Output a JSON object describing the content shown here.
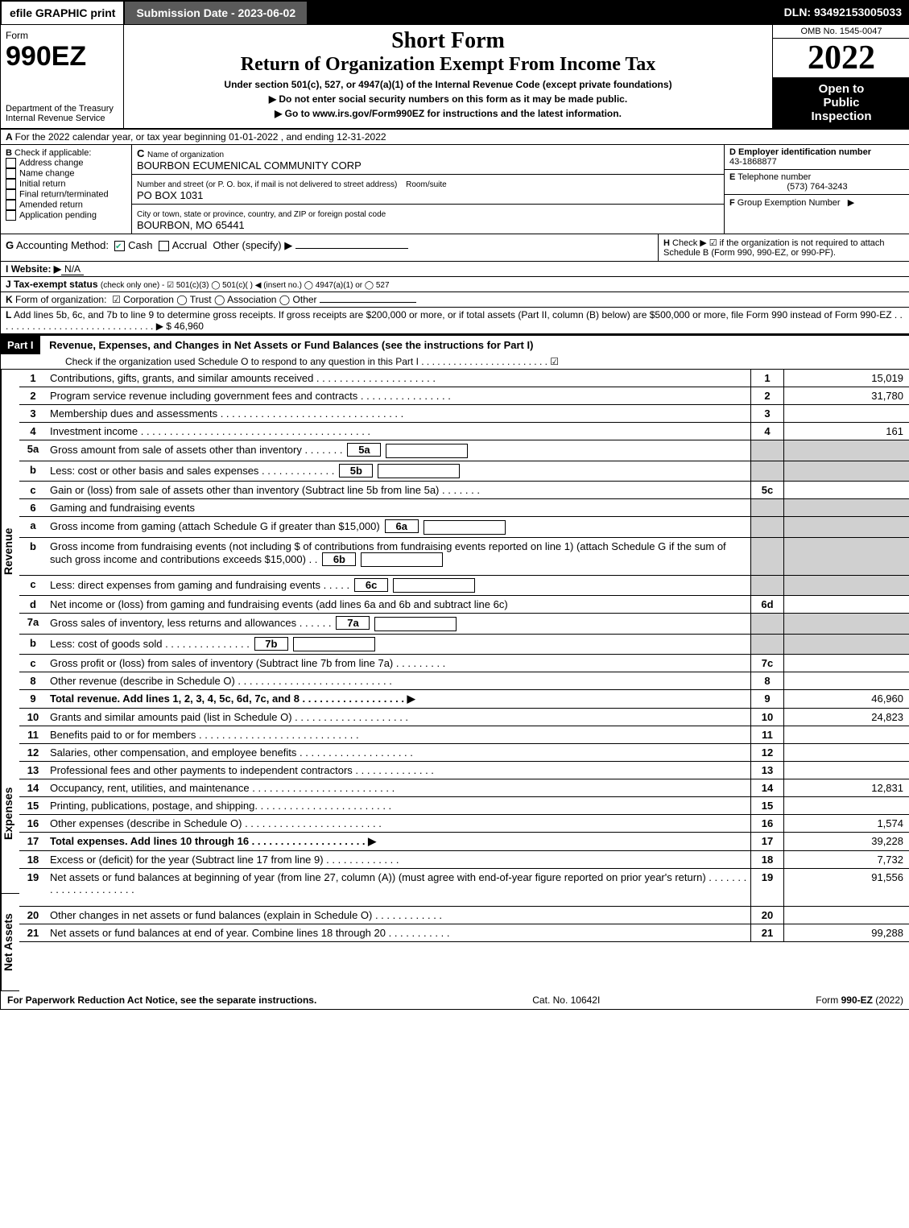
{
  "topbar": {
    "efile": "efile GRAPHIC print",
    "sub_label": "Submission Date - ",
    "sub_date": "2023-06-02",
    "dln_label": "DLN: ",
    "dln": "93492153005033"
  },
  "header": {
    "form_word": "Form",
    "form_no": "990EZ",
    "dept": "Department of the Treasury\nInternal Revenue Service",
    "title1": "Short Form",
    "title2": "Return of Organization Exempt From Income Tax",
    "subtitle": "Under section 501(c), 527, or 4947(a)(1) of the Internal Revenue Code (except private foundations)",
    "instr1": "▶ Do not enter social security numbers on this form as it may be made public.",
    "instr2": "▶ Go to www.irs.gov/Form990EZ for instructions and the latest information.",
    "omb": "OMB No. 1545-0047",
    "year": "2022",
    "open1": "Open to",
    "open2": "Public",
    "open3": "Inspection"
  },
  "A": {
    "text": "For the 2022 calendar year, or tax year beginning 01-01-2022 , and ending 12-31-2022"
  },
  "B": {
    "label": "Check if applicable:",
    "items": [
      "Address change",
      "Name change",
      "Initial return",
      "Final return/terminated",
      "Amended return",
      "Application pending"
    ]
  },
  "C": {
    "name_label": "Name of organization",
    "name": "BOURBON ECUMENICAL COMMUNITY CORP",
    "street_label": "Number and street (or P. O. box, if mail is not delivered to street address)",
    "room_label": "Room/suite",
    "street": "PO BOX 1031",
    "city_label": "City or town, state or province, country, and ZIP or foreign postal code",
    "city": "BOURBON, MO  65441"
  },
  "D": {
    "label": "Employer identification number",
    "value": "43-1868877"
  },
  "E": {
    "label": "Telephone number",
    "value": "(573) 764-3243"
  },
  "F": {
    "label": "Group Exemption Number",
    "arrow": "▶"
  },
  "G": {
    "label": "Accounting Method:",
    "cash": "Cash",
    "accrual": "Accrual",
    "other": "Other (specify) ▶"
  },
  "H": {
    "text": "Check ▶ ☑ if the organization is not required to attach Schedule B (Form 990, 990-EZ, or 990-PF)."
  },
  "I": {
    "label": "Website: ▶",
    "value": "N/A"
  },
  "J": {
    "label": "Tax-exempt status",
    "text": "(check only one) - ☑ 501(c)(3)  ◯ 501(c)(  ) ◀ (insert no.)  ◯ 4947(a)(1) or  ◯ 527"
  },
  "K": {
    "label": "Form of organization:",
    "text": "☑ Corporation  ◯ Trust  ◯ Association  ◯ Other"
  },
  "L": {
    "text": "Add lines 5b, 6c, and 7b to line 9 to determine gross receipts. If gross receipts are $200,000 or more, or if total assets (Part II, column (B) below) are $500,000 or more, file Form 990 instead of Form 990-EZ  . . . . . . . . . . . . . . . . . . . . . . . . . . . . . . ▶ $ ",
    "amount": "46,960"
  },
  "part1": {
    "header": "Part I",
    "title": "Revenue, Expenses, and Changes in Net Assets or Fund Balances (see the instructions for Part I)",
    "check": "Check if the organization used Schedule O to respond to any question in this Part I . . . . . . . . . . . . . . . . . . . . . . . . ☑",
    "side_rev": "Revenue",
    "side_exp": "Expenses",
    "side_net": "Net Assets",
    "lines": [
      {
        "no": "1",
        "desc": "Contributions, gifts, grants, and similar amounts received . . . . . . . . . . . . . . . . . . . . .",
        "rn": "1",
        "amt": "15,019"
      },
      {
        "no": "2",
        "desc": "Program service revenue including government fees and contracts . . . . . . . . . . . . . . . .",
        "rn": "2",
        "amt": "31,780"
      },
      {
        "no": "3",
        "desc": "Membership dues and assessments . . . . . . . . . . . . . . . . . . . . . . . . . . . . . . . .",
        "rn": "3",
        "amt": ""
      },
      {
        "no": "4",
        "desc": "Investment income . . . . . . . . . . . . . . . . . . . . . . . . . . . . . . . . . . . . . . . .",
        "rn": "4",
        "amt": "161"
      },
      {
        "no": "5a",
        "desc": "Gross amount from sale of assets other than inventory . . . . . . .",
        "sub": "5a",
        "shadeR": true
      },
      {
        "no": "b",
        "desc": "Less: cost or other basis and sales expenses . . . . . . . . . . . . .",
        "sub": "5b",
        "shadeR": true
      },
      {
        "no": "c",
        "desc": "Gain or (loss) from sale of assets other than inventory (Subtract line 5b from line 5a) . . . . . . .",
        "rn": "5c",
        "amt": ""
      },
      {
        "no": "6",
        "desc": "Gaming and fundraising events",
        "shadeR": true,
        "noRN": true
      },
      {
        "no": "a",
        "desc": "Gross income from gaming (attach Schedule G if greater than $15,000)",
        "sub": "6a",
        "shadeR": true
      },
      {
        "no": "b",
        "desc": "Gross income from fundraising events (not including $                   of contributions from fundraising events reported on line 1) (attach Schedule G if the sum of such gross income and contributions exceeds $15,000)   . .",
        "sub": "6b",
        "shadeR": true,
        "tall": true
      },
      {
        "no": "c",
        "desc": "Less: direct expenses from gaming and fundraising events   . . . . .",
        "sub": "6c",
        "shadeR": true
      },
      {
        "no": "d",
        "desc": "Net income or (loss) from gaming and fundraising events (add lines 6a and 6b and subtract line 6c)",
        "rn": "6d",
        "amt": ""
      },
      {
        "no": "7a",
        "desc": "Gross sales of inventory, less returns and allowances . . . . . .",
        "sub": "7a",
        "shadeR": true
      },
      {
        "no": "b",
        "desc": "Less: cost of goods sold        . . . . . . . . . . . . . . .",
        "sub": "7b",
        "shadeR": true
      },
      {
        "no": "c",
        "desc": "Gross profit or (loss) from sales of inventory (Subtract line 7b from line 7a) . . . . . . . . .",
        "rn": "7c",
        "amt": ""
      },
      {
        "no": "8",
        "desc": "Other revenue (describe in Schedule O) . . . . . . . . . . . . . . . . . . . . . . . . . . .",
        "rn": "8",
        "amt": ""
      },
      {
        "no": "9",
        "desc": "Total revenue. Add lines 1, 2, 3, 4, 5c, 6d, 7c, and 8  . . . . . . . . . . . . . . . . . . ▶",
        "rn": "9",
        "amt": "46,960",
        "bold": true
      },
      {
        "no": "10",
        "desc": "Grants and similar amounts paid (list in Schedule O) . . . . . . . . . . . . . . . . . . . .",
        "rn": "10",
        "amt": "24,823",
        "sec": "exp"
      },
      {
        "no": "11",
        "desc": "Benefits paid to or for members     . . . . . . . . . . . . . . . . . . . . . . . . . . . .",
        "rn": "11",
        "amt": "",
        "sec": "exp"
      },
      {
        "no": "12",
        "desc": "Salaries, other compensation, and employee benefits . . . . . . . . . . . . . . . . . . . .",
        "rn": "12",
        "amt": "",
        "sec": "exp"
      },
      {
        "no": "13",
        "desc": "Professional fees and other payments to independent contractors . . . . . . . . . . . . . .",
        "rn": "13",
        "amt": "",
        "sec": "exp"
      },
      {
        "no": "14",
        "desc": "Occupancy, rent, utilities, and maintenance . . . . . . . . . . . . . . . . . . . . . . . . .",
        "rn": "14",
        "amt": "12,831",
        "sec": "exp"
      },
      {
        "no": "15",
        "desc": "Printing, publications, postage, and shipping. . . . . . . . . . . . . . . . . . . . . . . .",
        "rn": "15",
        "amt": "",
        "sec": "exp"
      },
      {
        "no": "16",
        "desc": "Other expenses (describe in Schedule O)    . . . . . . . . . . . . . . . . . . . . . . . .",
        "rn": "16",
        "amt": "1,574",
        "sec": "exp"
      },
      {
        "no": "17",
        "desc": "Total expenses. Add lines 10 through 16      . . . . . . . . . . . . . . . . . . . . ▶",
        "rn": "17",
        "amt": "39,228",
        "sec": "exp",
        "bold": true
      },
      {
        "no": "18",
        "desc": "Excess or (deficit) for the year (Subtract line 17 from line 9)        . . . . . . . . . . . . .",
        "rn": "18",
        "amt": "7,732",
        "sec": "net"
      },
      {
        "no": "19",
        "desc": "Net assets or fund balances at beginning of year (from line 27, column (A)) (must agree with end-of-year figure reported on prior year's return) . . . . . . . . . . . . . . . . . . . . . .",
        "rn": "19",
        "amt": "91,556",
        "sec": "net",
        "tall": true
      },
      {
        "no": "20",
        "desc": "Other changes in net assets or fund balances (explain in Schedule O) . . . . . . . . . . . .",
        "rn": "20",
        "amt": "",
        "sec": "net"
      },
      {
        "no": "21",
        "desc": "Net assets or fund balances at end of year. Combine lines 18 through 20 . . . . . . . . . . .",
        "rn": "21",
        "amt": "99,288",
        "sec": "net"
      }
    ]
  },
  "footer": {
    "left": "For Paperwork Reduction Act Notice, see the separate instructions.",
    "mid": "Cat. No. 10642I",
    "right": "Form 990-EZ (2022)"
  }
}
